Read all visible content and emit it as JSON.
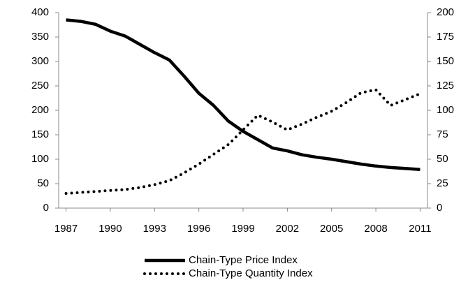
{
  "chart_data": {
    "type": "line",
    "x": [
      1987,
      1988,
      1989,
      1990,
      1991,
      1992,
      1993,
      1994,
      1995,
      1996,
      1997,
      1998,
      1999,
      2000,
      2001,
      2002,
      2003,
      2004,
      2005,
      2006,
      2007,
      2008,
      2009,
      2010,
      2011
    ],
    "xlim": [
      1986.5,
      2011.5
    ],
    "xticks": [
      1987,
      1990,
      1993,
      1996,
      1999,
      2002,
      2005,
      2008,
      2011
    ],
    "ylim": [
      0,
      400
    ],
    "yticks": [
      0,
      50,
      100,
      150,
      200,
      250,
      300,
      350,
      400
    ],
    "y2lim": [
      0,
      200
    ],
    "y2ticks": [
      0,
      25,
      50,
      75,
      100,
      125,
      150,
      175,
      200
    ],
    "series": [
      {
        "name": "Chain-Type Price Index",
        "color": "#000000",
        "line_style": "solid",
        "values": [
          385,
          382,
          376,
          362,
          352,
          335,
          318,
          303,
          270,
          235,
          210,
          178,
          157,
          140,
          123,
          117,
          109,
          104,
          100,
          95,
          90,
          86,
          83,
          81,
          79
        ]
      },
      {
        "name": "Chain-Type Quantity Index",
        "color": "#000000",
        "line_style": "dotted",
        "axis": "y2",
        "values": [
          15,
          16,
          17,
          18,
          19,
          21,
          24,
          28,
          36,
          45,
          55,
          65,
          80,
          95,
          88,
          80,
          86,
          93,
          99,
          108,
          118,
          121,
          105,
          111,
          117
        ]
      }
    ]
  }
}
